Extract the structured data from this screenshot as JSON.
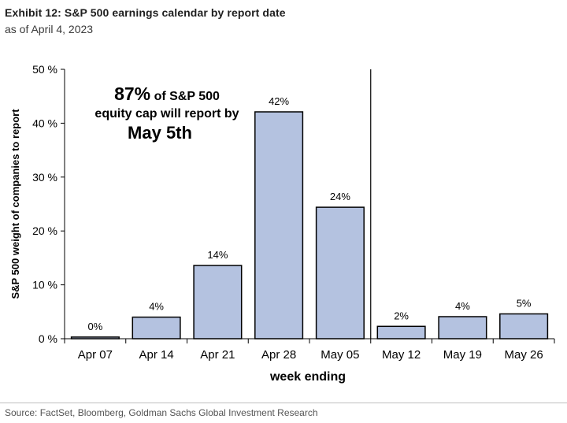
{
  "header": {
    "title": "Exhibit 12: S&P 500 earnings calendar by report date",
    "subtitle": "as of April 4, 2023"
  },
  "footer": {
    "source": "Source: FactSet, Bloomberg, Goldman Sachs Global Investment Research"
  },
  "chart_data": {
    "type": "bar",
    "categories": [
      "Apr 07",
      "Apr 14",
      "Apr 21",
      "Apr 28",
      "May 05",
      "May 12",
      "May 19",
      "May 26"
    ],
    "values": [
      0.3,
      4,
      13.6,
      42.1,
      24.4,
      2.3,
      4.1,
      4.6
    ],
    "data_labels": [
      "0%",
      "4%",
      "14%",
      "42%",
      "24%",
      "2%",
      "4%",
      "5%"
    ],
    "xlabel": "week ending",
    "ylabel": "S&P 500 weight of companies to report",
    "ylim": [
      0,
      50
    ],
    "yticks": [
      0,
      10,
      20,
      30,
      40,
      50
    ],
    "ytick_labels": [
      "0 %",
      "10 %",
      "20 %",
      "30 %",
      "40 %",
      "50 %"
    ],
    "divider_between": [
      "May 05",
      "May 12"
    ],
    "annotation": {
      "line1_big": "87%",
      "line1_rest": " of S&P 500",
      "line2": "equity cap will report by",
      "line3": "May 5th"
    },
    "colors": {
      "bar_fill": "#b4c2e0",
      "bar_stroke": "#000000",
      "axis": "#000000"
    },
    "grid": false
  }
}
